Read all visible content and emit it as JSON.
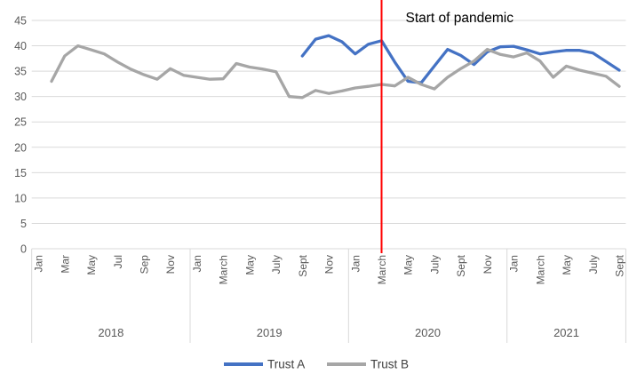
{
  "chart_data": {
    "type": "line",
    "title": "",
    "annotation": {
      "text": "Start of pandemic",
      "color": "#000000"
    },
    "reference_line": {
      "month": "March 2020",
      "color": "#FF0000"
    },
    "y_axis": {
      "min": 0,
      "max": 45,
      "step": 5,
      "tick_labels": [
        "0",
        "5",
        "10",
        "15",
        "20",
        "25",
        "30",
        "35",
        "40",
        "45"
      ]
    },
    "x_axis": {
      "unit": "month",
      "years": [
        {
          "label": "2018",
          "months": 12,
          "tick_labels": [
            "Jan",
            "Mar",
            "May",
            "Jul",
            "Sep",
            "Nov"
          ]
        },
        {
          "label": "2019",
          "months": 12,
          "tick_labels": [
            "Jan",
            "March",
            "May",
            "July",
            "Sept",
            "Nov"
          ]
        },
        {
          "label": "2020",
          "months": 12,
          "tick_labels": [
            "Jan",
            "March",
            "May",
            "July",
            "Sept",
            "Nov"
          ]
        },
        {
          "label": "2021",
          "months": 9,
          "tick_labels": [
            "Jan",
            "March",
            "May",
            "July",
            "Sept"
          ]
        }
      ]
    },
    "series": [
      {
        "name": "Trust A",
        "color": "#4472C4",
        "start_month": "Sept 2019",
        "start_index": 20,
        "values": [
          38,
          41.3,
          42,
          40.8,
          38.4,
          40.3,
          41,
          36.8,
          33,
          32.7,
          36,
          39.3,
          38.1,
          36.3,
          38.8,
          39.8,
          39.9,
          39.2,
          38.4,
          38.8,
          39.1,
          39.1,
          38.6,
          36.9,
          35.2
        ]
      },
      {
        "name": "Trust B",
        "color": "#A6A6A6",
        "start_month": "Feb 2018",
        "start_index": 1,
        "values": [
          33,
          38,
          40,
          39.2,
          38.4,
          36.8,
          35.4,
          34.3,
          33.4,
          35.5,
          34.2,
          33.8,
          33.4,
          33.5,
          36.5,
          35.8,
          35.4,
          34.9,
          30,
          29.8,
          31.2,
          30.6,
          31.1,
          31.7,
          32,
          32.4,
          32.1,
          33.8,
          32.4,
          31.5,
          33.8,
          35.5,
          37,
          39.3,
          38.3,
          37.8,
          38.6,
          37,
          33.8,
          36,
          35.2,
          34.6,
          34,
          32
        ]
      }
    ],
    "legend": [
      {
        "label": "Trust A",
        "color": "#4472C4"
      },
      {
        "label": "Trust B",
        "color": "#A6A6A6"
      }
    ],
    "legend_position": "bottom-center",
    "grid": true,
    "gridline_color": "#D9D9D9",
    "axis_label_color": "#595959",
    "legend_text_color": "#3F3F3F"
  }
}
